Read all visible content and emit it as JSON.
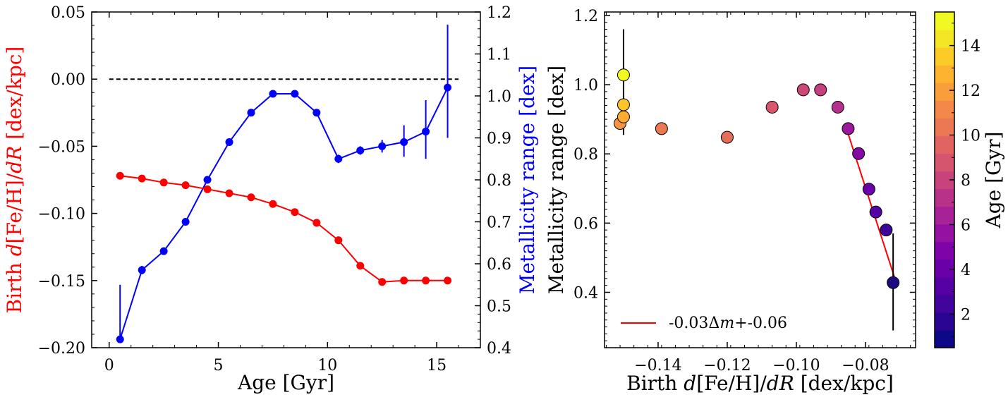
{
  "chart_data": [
    {
      "type": "line",
      "xlabel": "Age [Gyr]",
      "ylabel_left": {
        "pre": "Birth ",
        "italic1": "d",
        "mid": "[Fe/H]/",
        "italic2": "dR",
        "post": " [dex/kpc]",
        "color": "#ff0000"
      },
      "ylabel_right": {
        "text": "Metallicity range [dex]",
        "color": "#0000ff"
      },
      "xlim": [
        -0.8,
        17.0
      ],
      "ylim_left": [
        -0.2,
        0.05
      ],
      "ylim_right": [
        0.4,
        1.2
      ],
      "xticks": [
        "0",
        "5",
        "10",
        "15"
      ],
      "xtick_values": [
        0,
        5,
        10,
        15
      ],
      "yticks_left": [
        "−0.20",
        "−0.15",
        "−0.10",
        "−0.05",
        "0.00",
        "0.05"
      ],
      "ytick_left_values": [
        -0.2,
        -0.15,
        -0.1,
        -0.05,
        0.0,
        0.05
      ],
      "yticks_right": [
        "0.4",
        "0.5",
        "0.6",
        "0.7",
        "0.8",
        "0.9",
        "1.0",
        "1.1",
        "1.2"
      ],
      "ytick_right_values": [
        0.4,
        0.5,
        0.6,
        0.7,
        0.8,
        0.9,
        1.0,
        1.1,
        1.2
      ],
      "reference_line": {
        "y": 0.0,
        "x_range": [
          0,
          16
        ],
        "style": "dashed",
        "color": "#000000"
      },
      "series": [
        {
          "axis": "left",
          "color": "#ff0000",
          "x": [
            0.5,
            1.5,
            2.5,
            3.5,
            4.5,
            5.5,
            6.5,
            7.5,
            8.5,
            9.5,
            10.5,
            11.5,
            12.5,
            13.5,
            14.5,
            15.5
          ],
          "y": [
            -0.072,
            -0.074,
            -0.077,
            -0.079,
            -0.082,
            -0.085,
            -0.088,
            -0.093,
            -0.099,
            -0.107,
            -0.12,
            -0.139,
            -0.151,
            -0.15,
            -0.15,
            -0.15
          ]
        },
        {
          "axis": "right",
          "color": "#0000ff",
          "x": [
            0.5,
            1.5,
            2.5,
            3.5,
            4.5,
            5.5,
            6.5,
            7.5,
            8.5,
            9.5,
            10.5,
            11.5,
            12.5,
            13.5,
            14.5,
            15.5
          ],
          "y": [
            0.42,
            0.585,
            0.63,
            0.7,
            0.8,
            0.89,
            0.96,
            1.005,
            1.005,
            0.96,
            0.85,
            0.87,
            0.88,
            0.89,
            0.915,
            1.02
          ],
          "err_low": [
            0.42,
            0.575,
            0.63,
            0.7,
            0.8,
            0.89,
            0.96,
            1.005,
            1.005,
            0.96,
            0.84,
            0.86,
            0.865,
            0.855,
            0.85,
            0.9
          ],
          "err_high": [
            0.55,
            0.595,
            0.63,
            0.7,
            0.8,
            0.89,
            0.96,
            1.005,
            1.005,
            0.96,
            0.86,
            0.88,
            0.895,
            0.93,
            0.99,
            1.17
          ]
        }
      ]
    },
    {
      "type": "scatter",
      "xlabel": {
        "pre": "Birth ",
        "italic1": "d",
        "mid": "[Fe/H]/",
        "italic2": "dR",
        "post": " [dex/kpc]"
      },
      "ylabel": "Metallicity range [dex]",
      "xlim": [
        -0.1555,
        -0.0655
      ],
      "ylim": [
        0.24,
        1.21
      ],
      "xticks": [
        "−0.14",
        "−0.12",
        "−0.10",
        "−0.08"
      ],
      "xtick_values": [
        -0.14,
        -0.12,
        -0.1,
        -0.08
      ],
      "yticks": [
        "0.4",
        "0.6",
        "0.8",
        "1.0",
        "1.2"
      ],
      "ytick_values": [
        0.4,
        0.6,
        0.8,
        1.0,
        1.2
      ],
      "points": [
        {
          "x": -0.072,
          "y": 0.428,
          "age": 0.5,
          "err": [
            0.29,
            0.57
          ],
          "color": "#1a0b82"
        },
        {
          "x": -0.074,
          "y": 0.58,
          "age": 1.5,
          "color": "#3b049a"
        },
        {
          "x": -0.077,
          "y": 0.632,
          "age": 2.5,
          "color": "#5302a3"
        },
        {
          "x": -0.079,
          "y": 0.698,
          "age": 3.5,
          "color": "#6a00a8"
        },
        {
          "x": -0.082,
          "y": 0.801,
          "age": 4.5,
          "color": "#8606a6"
        },
        {
          "x": -0.085,
          "y": 0.873,
          "age": 5.5,
          "color": "#9c179e"
        },
        {
          "x": -0.088,
          "y": 0.935,
          "age": 6.5,
          "color": "#b52f8c"
        },
        {
          "x": -0.093,
          "y": 0.985,
          "age": 7.5,
          "color": "#c5407e"
        },
        {
          "x": -0.098,
          "y": 0.985,
          "age": 8.5,
          "color": "#cc4778"
        },
        {
          "x": -0.107,
          "y": 0.935,
          "age": 9.5,
          "color": "#d8576b"
        },
        {
          "x": -0.12,
          "y": 0.848,
          "age": 10.5,
          "color": "#e66c5c"
        },
        {
          "x": -0.139,
          "y": 0.873,
          "age": 11.5,
          "color": "#ed7953"
        },
        {
          "x": -0.151,
          "y": 0.888,
          "age": 12.5,
          "color": "#f89441"
        },
        {
          "x": -0.15,
          "y": 0.907,
          "age": 13.5,
          "color": "#fdac33"
        },
        {
          "x": -0.15,
          "y": 0.942,
          "age": 14.5,
          "color": "#fdc527"
        },
        {
          "x": -0.15,
          "y": 1.028,
          "age": 15.5,
          "err": [
            0.855,
            1.16
          ],
          "color": "#f0f921"
        }
      ],
      "fit_line": {
        "x": [
          -0.0855,
          -0.0715
        ],
        "y": [
          0.873,
          0.44
        ],
        "color": "#ff0000"
      },
      "legend": {
        "label_pre": "-0.03Δ",
        "label_ital": "m",
        "label_post": "+-0.06",
        "placement": "lower-left",
        "color": "#ff0000"
      },
      "colorbar": {
        "label": "Age [Gyr]",
        "range": [
          0.5,
          15.5
        ],
        "ticks": [
          "2",
          "4",
          "6",
          "8",
          "10",
          "12",
          "14"
        ],
        "tick_values": [
          2,
          4,
          6,
          8,
          10,
          12,
          14
        ],
        "bands": [
          "#0d0887",
          "#2a0593",
          "#41049d",
          "#5601a4",
          "#6a00a8",
          "#7e03a8",
          "#9511a1",
          "#a72197",
          "#b83289",
          "#c8437b",
          "#d5546e",
          "#e16462",
          "#ec7853",
          "#f48849",
          "#fa9e3b",
          "#fdb32f",
          "#fbcc27",
          "#f4e625",
          "#f0f921"
        ]
      }
    }
  ]
}
